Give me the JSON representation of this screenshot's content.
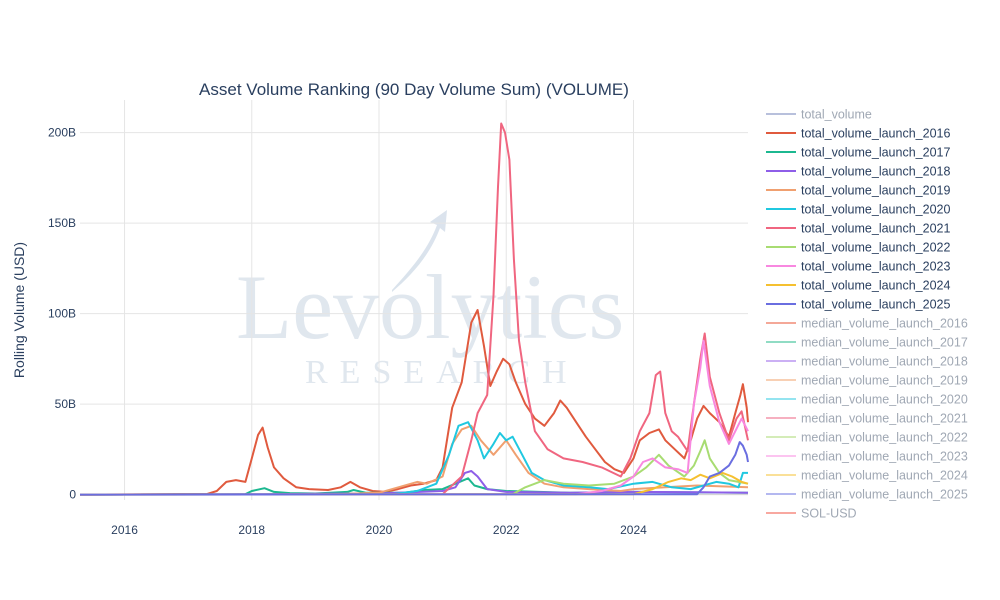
{
  "chart_data": {
    "type": "line",
    "title": "Asset Volume Ranking (90 Day Volume Sum) (VOLUME)",
    "xlabel": "",
    "ylabel": "Rolling Volume (USD)",
    "xlim": [
      2015.3,
      2025.8
    ],
    "ylim": [
      -3,
      218
    ],
    "x_ticks": [
      2016,
      2018,
      2020,
      2022,
      2024
    ],
    "x_tick_labels": [
      "2016",
      "2018",
      "2020",
      "2022",
      "2024"
    ],
    "y_ticks": [
      0,
      50,
      100,
      150,
      200
    ],
    "y_tick_labels": [
      "0",
      "50B",
      "100B",
      "150B",
      "200B"
    ],
    "grid": true,
    "legend_position": "right",
    "watermark": {
      "main": "Levolytics",
      "sub": "RESEARCH"
    },
    "series": [
      {
        "name": "total_volume",
        "color": "#b8c0dc",
        "faded": true,
        "points": []
      },
      {
        "name": "total_volume_launch_2016",
        "color": "#e05a3e",
        "faded": false,
        "points": [
          [
            2015.3,
            0
          ],
          [
            2017.3,
            0.3
          ],
          [
            2017.45,
            2
          ],
          [
            2017.6,
            7
          ],
          [
            2017.75,
            8
          ],
          [
            2017.9,
            7
          ],
          [
            2018.0,
            20
          ],
          [
            2018.1,
            33
          ],
          [
            2018.17,
            37
          ],
          [
            2018.25,
            26
          ],
          [
            2018.35,
            15
          ],
          [
            2018.5,
            9
          ],
          [
            2018.7,
            4
          ],
          [
            2018.9,
            3
          ],
          [
            2019.2,
            2.5
          ],
          [
            2019.4,
            4
          ],
          [
            2019.55,
            7
          ],
          [
            2019.7,
            4
          ],
          [
            2019.9,
            2
          ],
          [
            2020.1,
            1.5
          ],
          [
            2020.3,
            3
          ],
          [
            2020.5,
            5
          ],
          [
            2020.7,
            6
          ],
          [
            2020.9,
            8
          ],
          [
            2021.0,
            15
          ],
          [
            2021.15,
            48
          ],
          [
            2021.3,
            62
          ],
          [
            2021.45,
            95
          ],
          [
            2021.55,
            102
          ],
          [
            2021.65,
            82
          ],
          [
            2021.75,
            60
          ],
          [
            2021.85,
            68
          ],
          [
            2021.95,
            75
          ],
          [
            2022.05,
            72
          ],
          [
            2022.15,
            62
          ],
          [
            2022.3,
            50
          ],
          [
            2022.45,
            42
          ],
          [
            2022.6,
            38
          ],
          [
            2022.75,
            45
          ],
          [
            2022.85,
            52
          ],
          [
            2022.95,
            48
          ],
          [
            2023.1,
            40
          ],
          [
            2023.25,
            32
          ],
          [
            2023.4,
            25
          ],
          [
            2023.55,
            18
          ],
          [
            2023.7,
            14
          ],
          [
            2023.85,
            12
          ],
          [
            2024.0,
            20
          ],
          [
            2024.1,
            30
          ],
          [
            2024.25,
            34
          ],
          [
            2024.4,
            36
          ],
          [
            2024.5,
            30
          ],
          [
            2024.65,
            25
          ],
          [
            2024.8,
            20
          ],
          [
            2024.9,
            30
          ],
          [
            2025.0,
            42
          ],
          [
            2025.1,
            49
          ],
          [
            2025.2,
            45
          ],
          [
            2025.35,
            40
          ],
          [
            2025.5,
            32
          ],
          [
            2025.6,
            45
          ],
          [
            2025.68,
            55
          ],
          [
            2025.72,
            61
          ],
          [
            2025.78,
            48
          ],
          [
            2025.8,
            40
          ]
        ]
      },
      {
        "name": "total_volume_launch_2017",
        "color": "#1cb890",
        "faded": false,
        "points": [
          [
            2015.3,
            0
          ],
          [
            2017.9,
            0.2
          ],
          [
            2018.0,
            2
          ],
          [
            2018.2,
            3.5
          ],
          [
            2018.35,
            1.5
          ],
          [
            2018.6,
            0.8
          ],
          [
            2019.0,
            0.6
          ],
          [
            2019.5,
            1.5
          ],
          [
            2019.6,
            2.5
          ],
          [
            2019.8,
            1
          ],
          [
            2020.4,
            1
          ],
          [
            2020.7,
            2.5
          ],
          [
            2021.0,
            3
          ],
          [
            2021.2,
            6
          ],
          [
            2021.4,
            9
          ],
          [
            2021.5,
            5
          ],
          [
            2021.7,
            3
          ],
          [
            2022.0,
            2
          ],
          [
            2023.0,
            1
          ],
          [
            2024.0,
            1.5
          ],
          [
            2025.0,
            1.2
          ],
          [
            2025.8,
            1
          ]
        ]
      },
      {
        "name": "total_volume_launch_2018",
        "color": "#8e5ee8",
        "faded": false,
        "points": [
          [
            2015.3,
            0
          ],
          [
            2018.2,
            0.2
          ],
          [
            2019.0,
            0.4
          ],
          [
            2020.0,
            0.6
          ],
          [
            2021.0,
            2
          ],
          [
            2021.2,
            4
          ],
          [
            2021.35,
            12
          ],
          [
            2021.45,
            13
          ],
          [
            2021.55,
            10
          ],
          [
            2021.7,
            3
          ],
          [
            2022.0,
            1.5
          ],
          [
            2023.0,
            1
          ],
          [
            2024.0,
            1.5
          ],
          [
            2025.0,
            1.3
          ],
          [
            2025.8,
            1
          ]
        ]
      },
      {
        "name": "total_volume_launch_2019",
        "color": "#f0a070",
        "faded": false,
        "points": [
          [
            2015.3,
            0
          ],
          [
            2019.3,
            0.2
          ],
          [
            2020.0,
            1
          ],
          [
            2020.6,
            7
          ],
          [
            2020.75,
            6
          ],
          [
            2021.0,
            10
          ],
          [
            2021.15,
            28
          ],
          [
            2021.3,
            36
          ],
          [
            2021.45,
            38
          ],
          [
            2021.6,
            30
          ],
          [
            2021.8,
            22
          ],
          [
            2022.0,
            30
          ],
          [
            2022.15,
            22
          ],
          [
            2022.35,
            12
          ],
          [
            2022.6,
            6
          ],
          [
            2022.9,
            4
          ],
          [
            2023.3,
            3
          ],
          [
            2023.8,
            2
          ],
          [
            2024.0,
            3
          ],
          [
            2024.5,
            4
          ],
          [
            2025.0,
            5
          ],
          [
            2025.8,
            4
          ]
        ]
      },
      {
        "name": "total_volume_launch_2020",
        "color": "#20c8e0",
        "faded": false,
        "points": [
          [
            2015.3,
            0
          ],
          [
            2020.2,
            0.2
          ],
          [
            2020.6,
            2
          ],
          [
            2020.9,
            6
          ],
          [
            2021.1,
            22
          ],
          [
            2021.25,
            38
          ],
          [
            2021.4,
            40
          ],
          [
            2021.55,
            30
          ],
          [
            2021.65,
            20
          ],
          [
            2021.8,
            28
          ],
          [
            2021.9,
            34
          ],
          [
            2022.0,
            30
          ],
          [
            2022.1,
            32
          ],
          [
            2022.25,
            22
          ],
          [
            2022.4,
            12
          ],
          [
            2022.6,
            8
          ],
          [
            2022.9,
            5
          ],
          [
            2023.3,
            4
          ],
          [
            2023.6,
            3
          ],
          [
            2024.0,
            6
          ],
          [
            2024.3,
            7
          ],
          [
            2024.6,
            4
          ],
          [
            2024.9,
            3
          ],
          [
            2025.1,
            5
          ],
          [
            2025.3,
            7
          ],
          [
            2025.5,
            6
          ],
          [
            2025.65,
            4
          ],
          [
            2025.72,
            12
          ],
          [
            2025.8,
            12
          ]
        ]
      },
      {
        "name": "total_volume_launch_2021",
        "color": "#f06680",
        "faded": false,
        "points": [
          [
            2015.3,
            0
          ],
          [
            2021.0,
            0.2
          ],
          [
            2021.3,
            10
          ],
          [
            2021.45,
            30
          ],
          [
            2021.55,
            45
          ],
          [
            2021.7,
            55
          ],
          [
            2021.8,
            110
          ],
          [
            2021.87,
            170
          ],
          [
            2021.92,
            205
          ],
          [
            2021.98,
            200
          ],
          [
            2022.05,
            185
          ],
          [
            2022.12,
            130
          ],
          [
            2022.2,
            85
          ],
          [
            2022.3,
            62
          ],
          [
            2022.45,
            35
          ],
          [
            2022.65,
            25
          ],
          [
            2022.9,
            20
          ],
          [
            2023.2,
            18
          ],
          [
            2023.5,
            15
          ],
          [
            2023.8,
            10
          ],
          [
            2023.95,
            20
          ],
          [
            2024.1,
            35
          ],
          [
            2024.25,
            45
          ],
          [
            2024.35,
            66
          ],
          [
            2024.42,
            68
          ],
          [
            2024.5,
            45
          ],
          [
            2024.6,
            35
          ],
          [
            2024.7,
            32
          ],
          [
            2024.85,
            24
          ],
          [
            2024.95,
            50
          ],
          [
            2025.05,
            75
          ],
          [
            2025.12,
            89
          ],
          [
            2025.2,
            65
          ],
          [
            2025.35,
            45
          ],
          [
            2025.5,
            30
          ],
          [
            2025.62,
            42
          ],
          [
            2025.7,
            46
          ],
          [
            2025.8,
            30
          ]
        ]
      },
      {
        "name": "total_volume_launch_2022",
        "color": "#a8dc72",
        "faded": false,
        "points": [
          [
            2015.3,
            0
          ],
          [
            2022.1,
            0.2
          ],
          [
            2022.3,
            4
          ],
          [
            2022.6,
            8
          ],
          [
            2022.9,
            6
          ],
          [
            2023.3,
            5
          ],
          [
            2023.7,
            6
          ],
          [
            2024.0,
            10
          ],
          [
            2024.2,
            15
          ],
          [
            2024.4,
            22
          ],
          [
            2024.55,
            16
          ],
          [
            2024.8,
            10
          ],
          [
            2024.95,
            16
          ],
          [
            2025.05,
            24
          ],
          [
            2025.12,
            30
          ],
          [
            2025.2,
            20
          ],
          [
            2025.35,
            12
          ],
          [
            2025.5,
            8
          ],
          [
            2025.65,
            7
          ],
          [
            2025.8,
            6
          ]
        ]
      },
      {
        "name": "total_volume_launch_2023",
        "color": "#f888e0",
        "faded": false,
        "points": [
          [
            2015.3,
            0
          ],
          [
            2023.1,
            0.2
          ],
          [
            2023.5,
            2
          ],
          [
            2023.8,
            5
          ],
          [
            2024.0,
            10
          ],
          [
            2024.15,
            18
          ],
          [
            2024.3,
            20
          ],
          [
            2024.5,
            15
          ],
          [
            2024.7,
            14
          ],
          [
            2024.85,
            12
          ],
          [
            2024.95,
            50
          ],
          [
            2025.05,
            70
          ],
          [
            2025.1,
            85
          ],
          [
            2025.2,
            60
          ],
          [
            2025.35,
            40
          ],
          [
            2025.5,
            28
          ],
          [
            2025.6,
            35
          ],
          [
            2025.7,
            42
          ],
          [
            2025.8,
            35
          ]
        ]
      },
      {
        "name": "total_volume_launch_2024",
        "color": "#f5c030",
        "faded": false,
        "points": [
          [
            2015.3,
            0
          ],
          [
            2024.0,
            0.2
          ],
          [
            2024.3,
            3
          ],
          [
            2024.55,
            7
          ],
          [
            2024.75,
            9
          ],
          [
            2024.9,
            8
          ],
          [
            2025.05,
            11
          ],
          [
            2025.2,
            9
          ],
          [
            2025.4,
            12
          ],
          [
            2025.55,
            10
          ],
          [
            2025.7,
            7
          ],
          [
            2025.8,
            6
          ]
        ]
      },
      {
        "name": "total_volume_launch_2025",
        "color": "#6a6ee0",
        "faded": false,
        "points": [
          [
            2015.3,
            0
          ],
          [
            2025.0,
            0.2
          ],
          [
            2025.1,
            4
          ],
          [
            2025.2,
            10
          ],
          [
            2025.35,
            12
          ],
          [
            2025.5,
            16
          ],
          [
            2025.6,
            22
          ],
          [
            2025.67,
            29
          ],
          [
            2025.72,
            27
          ],
          [
            2025.78,
            22
          ],
          [
            2025.8,
            18
          ]
        ]
      },
      {
        "name": "median_volume_launch_2016",
        "color": "#f4a898",
        "faded": true,
        "points": []
      },
      {
        "name": "median_volume_launch_2017",
        "color": "#90dcc4",
        "faded": true,
        "points": []
      },
      {
        "name": "median_volume_launch_2018",
        "color": "#cbb0f4",
        "faded": true,
        "points": []
      },
      {
        "name": "median_volume_launch_2019",
        "color": "#f8d0b4",
        "faded": true,
        "points": []
      },
      {
        "name": "median_volume_launch_2020",
        "color": "#94e4f0",
        "faded": true,
        "points": []
      },
      {
        "name": "median_volume_launch_2021",
        "color": "#f6b0c0",
        "faded": true,
        "points": []
      },
      {
        "name": "median_volume_launch_2022",
        "color": "#d4ecb8",
        "faded": true,
        "points": []
      },
      {
        "name": "median_volume_launch_2023",
        "color": "#fcc4f0",
        "faded": true,
        "points": []
      },
      {
        "name": "median_volume_launch_2024",
        "color": "#fae098",
        "faded": true,
        "points": []
      },
      {
        "name": "median_volume_launch_2025",
        "color": "#b4b8f0",
        "faded": true,
        "points": []
      },
      {
        "name": "SOL-USD",
        "color": "#f8a8a0",
        "faded": true,
        "points": []
      }
    ]
  }
}
